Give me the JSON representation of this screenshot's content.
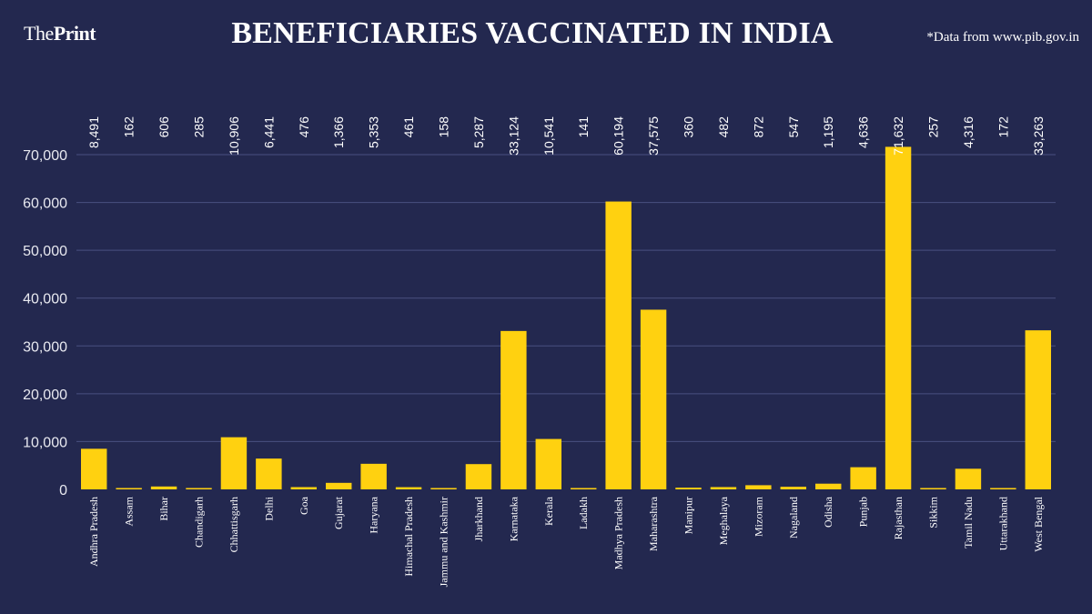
{
  "header": {
    "logo_prefix": "The",
    "logo_bold": "Print",
    "title": "BENEFICIARIES VACCINATED IN INDIA",
    "source": "*Data from www.pib.gov.in"
  },
  "colors": {
    "background": "#23284f",
    "bar": "#ffd110",
    "grid": "#4a5080"
  },
  "chart_data": {
    "type": "bar",
    "title": "BENEFICIARIES VACCINATED IN INDIA",
    "xlabel": "",
    "ylabel": "",
    "ylim": [
      0,
      70000
    ],
    "yticks": [
      0,
      10000,
      20000,
      30000,
      40000,
      50000,
      60000,
      70000
    ],
    "ytick_labels": [
      "0",
      "10,000",
      "20,000",
      "30,000",
      "40,000",
      "50,000",
      "60,000",
      "70,000"
    ],
    "grid": true,
    "categories": [
      "Andhra Pradesh",
      "Assam",
      "Bihar",
      "Chandigarh",
      "Chhattisgarh",
      "Delhi",
      "Goa",
      "Gujarat",
      "Haryana",
      "Himachal Pradesh",
      "Jammu and Kashmir",
      "Jharkhand",
      "Karnataka",
      "Kerala",
      "Ladakh",
      "Madhya Pradesh",
      "Maharashtra",
      "Manipur",
      "Meghalaya",
      "Mizoram",
      "Nagaland",
      "Odisha",
      "Punjab",
      "Rajasthan",
      "Sikkim",
      "Tamil Nadu",
      "Uttarakhand",
      "West Bengal"
    ],
    "values": [
      8491,
      162,
      606,
      285,
      10906,
      6441,
      476,
      1366,
      5353,
      461,
      158,
      5287,
      33124,
      10541,
      141,
      60194,
      37575,
      360,
      482,
      872,
      547,
      1195,
      4636,
      71632,
      257,
      4316,
      172,
      33263
    ],
    "value_labels": [
      "8,491",
      "162",
      "606",
      "285",
      "10,906",
      "6,441",
      "476",
      "1,366",
      "5,353",
      "461",
      "158",
      "5,287",
      "33,124",
      "10,541",
      "141",
      "60,194",
      "37,575",
      "360",
      "482",
      "872",
      "547",
      "1,195",
      "4,636",
      "71,632",
      "257",
      "4,316",
      "172",
      "33,263"
    ]
  }
}
